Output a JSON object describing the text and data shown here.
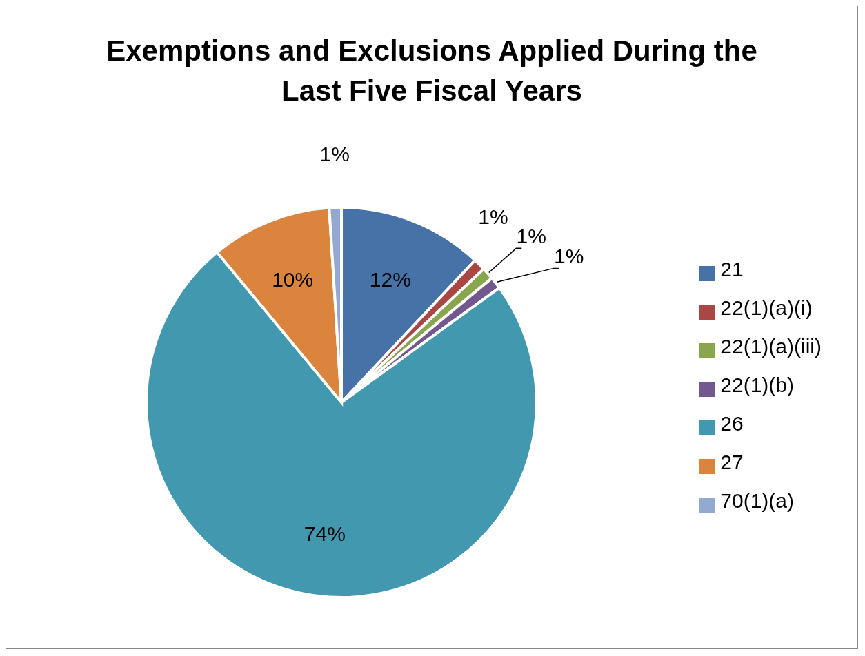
{
  "chart_data": {
    "type": "pie",
    "title": "Exemptions and Exclusions Applied During the Last Five Fiscal Years",
    "categories": [
      "21",
      "22(1)(a)(i)",
      "22(1)(a)(iii)",
      "22(1)(b)",
      "26",
      "27",
      "70(1)(a)"
    ],
    "values": [
      12,
      1,
      1,
      1,
      74,
      10,
      1
    ],
    "colors": [
      "#4672a8",
      "#aa4643",
      "#89a54e",
      "#71588f",
      "#4198af",
      "#db843d",
      "#93a9cf"
    ],
    "value_labels": [
      "12%",
      "1%",
      "1%",
      "1%",
      "74%",
      "10%",
      "1%"
    ],
    "legend": "right"
  }
}
